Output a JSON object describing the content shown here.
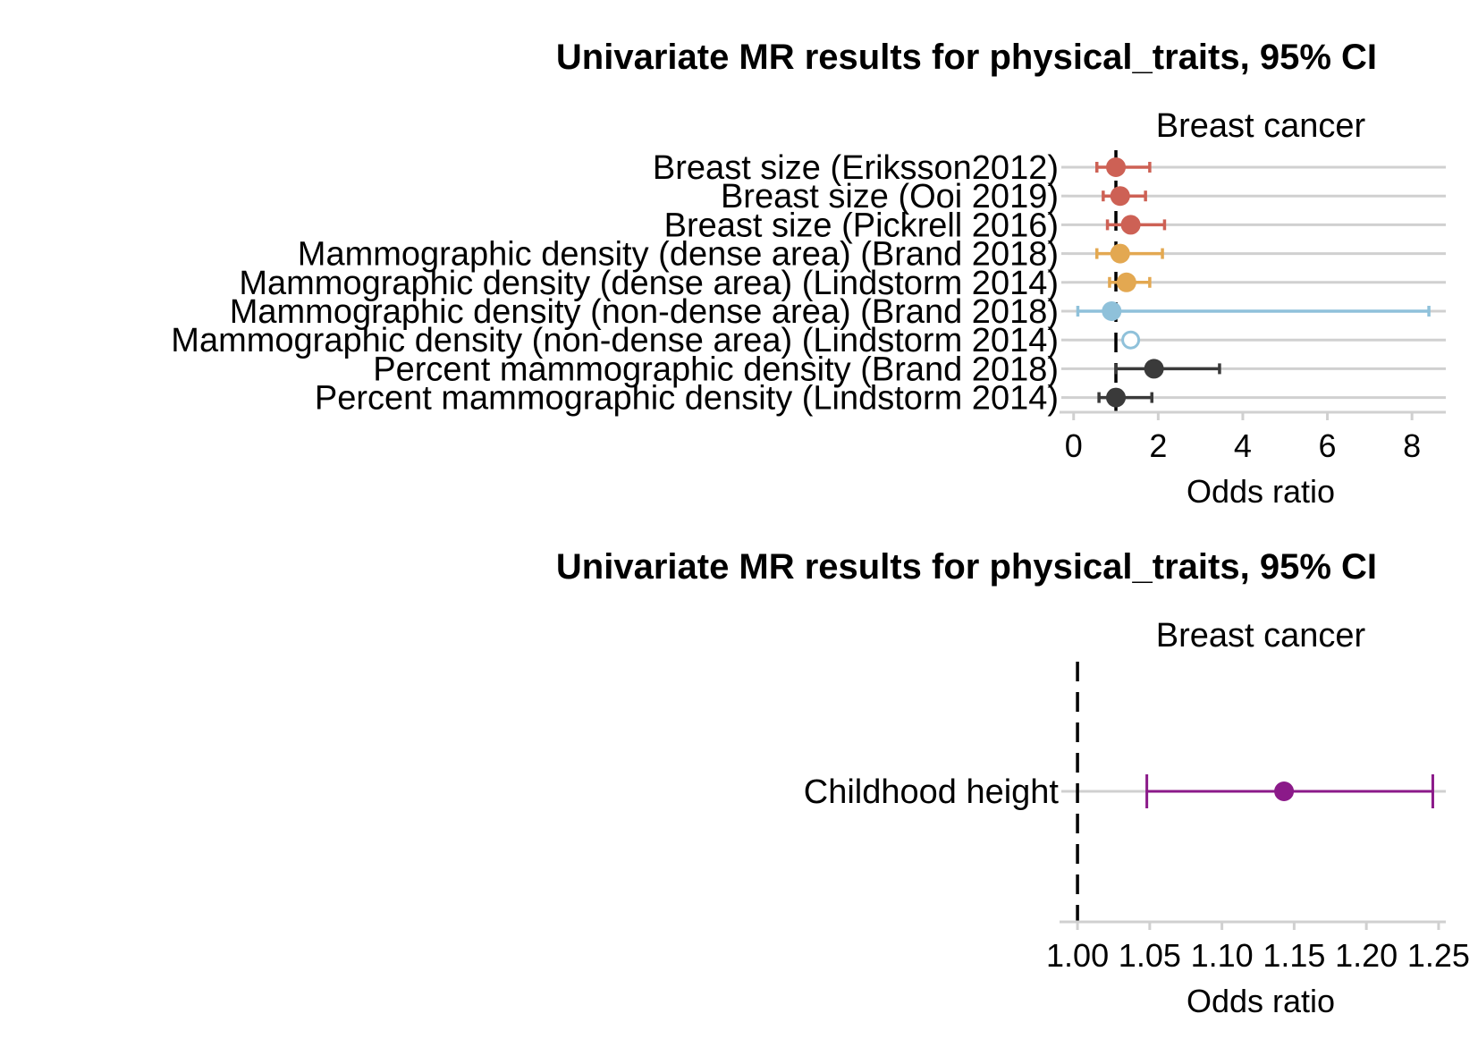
{
  "chart_data": [
    {
      "type": "forest",
      "title": "Univariate MR results for physical_traits, 95% CI",
      "facet": "Breast cancer",
      "xlabel": "Odds ratio",
      "xlim": [
        -0.1,
        8.8
      ],
      "xticks": [
        0,
        2,
        4,
        6,
        8
      ],
      "reference_line": 1,
      "rows": [
        {
          "label": "Breast size (Eriksson2012)",
          "or": 1.0,
          "lo": 0.55,
          "hi": 1.8,
          "color": "#cd6155",
          "filled": true
        },
        {
          "label": "Breast size (Ooi 2019)",
          "or": 1.1,
          "lo": 0.7,
          "hi": 1.7,
          "color": "#cd6155",
          "filled": true
        },
        {
          "label": "Breast size (Pickrell 2016)",
          "or": 1.35,
          "lo": 0.8,
          "hi": 2.15,
          "color": "#cd6155",
          "filled": true
        },
        {
          "label": "Mammographic density (dense area) (Brand 2018)",
          "or": 1.1,
          "lo": 0.55,
          "hi": 2.1,
          "color": "#e3a851",
          "filled": true
        },
        {
          "label": "Mammographic density (dense area) (Lindstorm 2014)",
          "or": 1.25,
          "lo": 0.85,
          "hi": 1.8,
          "color": "#e3a851",
          "filled": true
        },
        {
          "label": "Mammographic density (non-dense area) (Brand 2018)",
          "or": 0.9,
          "lo": 0.1,
          "hi": 8.4,
          "color": "#8fc1da",
          "filled": true
        },
        {
          "label": "Mammographic density (non-dense area) (Lindstorm 2014)",
          "or": 1.35,
          "lo": 1.25,
          "hi": 1.45,
          "color": "#8fc1da",
          "filled": false
        },
        {
          "label": "Percent mammographic density  (Brand 2018)",
          "or": 1.9,
          "lo": 1.0,
          "hi": 3.45,
          "color": "#3a3a3a",
          "filled": true
        },
        {
          "label": "Percent mammographic density (Lindstorm 2014)",
          "or": 1.0,
          "lo": 0.6,
          "hi": 1.85,
          "color": "#3a3a3a",
          "filled": true
        }
      ]
    },
    {
      "type": "forest",
      "title": "Univariate MR results for physical_traits, 95% CI",
      "facet": "Breast cancer",
      "xlabel": "Odds ratio",
      "xlim": [
        0.995,
        1.255
      ],
      "xticks": [
        1.0,
        1.05,
        1.1,
        1.15,
        1.2,
        1.25
      ],
      "xtick_labels": [
        "1.00",
        "1.05",
        "1.10",
        "1.15",
        "1.20",
        "1.25"
      ],
      "reference_line": 1,
      "rows": [
        {
          "label": "Childhood height",
          "or": 1.143,
          "lo": 1.048,
          "hi": 1.246,
          "color": "#8b1a89",
          "filled": true
        }
      ]
    }
  ]
}
